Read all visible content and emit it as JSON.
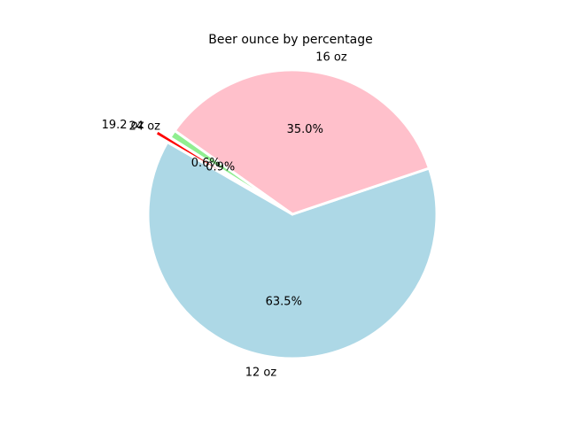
{
  "chart_data": {
    "type": "pie",
    "title": "Beer ounce by percentage",
    "slices": [
      {
        "label": "12 oz",
        "value": 63.5,
        "pct_label": "63.5%",
        "color": "#add8e6",
        "explode": 0.0
      },
      {
        "label": "16 oz",
        "value": 35.0,
        "pct_label": "35.0%",
        "color": "#ffc0cb",
        "explode": 0.0
      },
      {
        "label": "24 oz",
        "value": 0.9,
        "pct_label": "0.9%",
        "color": "#90ee90",
        "explode": 0.0
      },
      {
        "label": "19.2 oz",
        "value": 0.6,
        "pct_label": "0.6%",
        "color": "#ff0000",
        "explode": 0.1
      }
    ],
    "start_angle_deg": 150,
    "direction": "counterclockwise"
  }
}
